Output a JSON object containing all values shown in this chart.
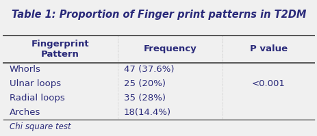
{
  "title": "Table 1: Proportion of Finger print patterns in T2DM",
  "col_headers": [
    "Fingerprint\nPattern",
    "Frequency",
    "P value"
  ],
  "rows": [
    [
      "Whorls",
      "47 (37.6%)",
      ""
    ],
    [
      "Ulnar loops",
      "25 (20%)",
      "<0.001"
    ],
    [
      "Radial loops",
      "35 (28%)",
      ""
    ],
    [
      "Arches",
      "18(14.4%)",
      ""
    ]
  ],
  "footer": "Chi square test",
  "bg_color": "#f0f0f0",
  "table_bg": "#f0f0f0",
  "text_color": "#2a2a7a",
  "border_color": "#555555",
  "font_size_title": 10.5,
  "font_size_header": 9.5,
  "font_size_body": 9.5,
  "font_size_footer": 8.5,
  "col_splits": [
    0.37,
    0.7
  ],
  "title_italic": true,
  "title_bold": true
}
